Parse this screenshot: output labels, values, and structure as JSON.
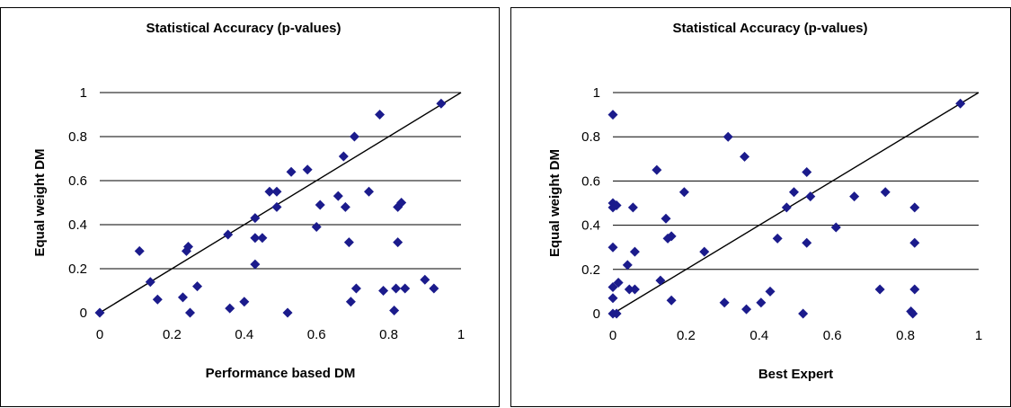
{
  "chart_data": [
    {
      "type": "scatter",
      "title": "Statistical Accuracy (p-values)",
      "xlabel": "Performance based DM",
      "ylabel": "Equal weight DM",
      "xlim": [
        0,
        1
      ],
      "ylim": [
        0,
        1
      ],
      "xticks": [
        "0",
        "0.2",
        "0.4",
        "0.6",
        "0.8",
        "1"
      ],
      "yticks": [
        "0",
        "0.2",
        "0.4",
        "0.6",
        "0.8",
        "1"
      ],
      "grid": "horizontal",
      "reference_line": "y = x",
      "marker_color": "#1b1b8c",
      "points": [
        [
          0,
          0
        ],
        [
          0.11,
          0.28
        ],
        [
          0.14,
          0.14
        ],
        [
          0.16,
          0.06
        ],
        [
          0.23,
          0.07
        ],
        [
          0.24,
          0.28
        ],
        [
          0.245,
          0.3
        ],
        [
          0.25,
          0
        ],
        [
          0.27,
          0.12
        ],
        [
          0.355,
          0.355
        ],
        [
          0.36,
          0.02
        ],
        [
          0.4,
          0.05
        ],
        [
          0.43,
          0.43
        ],
        [
          0.43,
          0.34
        ],
        [
          0.43,
          0.22
        ],
        [
          0.45,
          0.34
        ],
        [
          0.47,
          0.55
        ],
        [
          0.49,
          0.55
        ],
        [
          0.49,
          0.48
        ],
        [
          0.52,
          0
        ],
        [
          0.53,
          0.64
        ],
        [
          0.575,
          0.65
        ],
        [
          0.6,
          0.39
        ],
        [
          0.61,
          0.49
        ],
        [
          0.66,
          0.53
        ],
        [
          0.675,
          0.71
        ],
        [
          0.68,
          0.48
        ],
        [
          0.69,
          0.32
        ],
        [
          0.695,
          0.05
        ],
        [
          0.705,
          0.8
        ],
        [
          0.71,
          0.11
        ],
        [
          0.745,
          0.55
        ],
        [
          0.775,
          0.9
        ],
        [
          0.785,
          0.1
        ],
        [
          0.815,
          0.01
        ],
        [
          0.82,
          0.11
        ],
        [
          0.825,
          0.48
        ],
        [
          0.825,
          0.32
        ],
        [
          0.835,
          0.5
        ],
        [
          0.845,
          0.11
        ],
        [
          0.9,
          0.15
        ],
        [
          0.925,
          0.11
        ],
        [
          0.945,
          0.95
        ]
      ]
    },
    {
      "type": "scatter",
      "title": "Statistical Accuracy (p-values)",
      "xlabel": "Best Expert",
      "ylabel": "Equal weight DM",
      "xlim": [
        0,
        1
      ],
      "ylim": [
        0,
        1
      ],
      "xticks": [
        "0",
        "0.2",
        "0.4",
        "0.6",
        "0.8",
        "1"
      ],
      "yticks": [
        "0",
        "0.2",
        "0.4",
        "0.6",
        "0.8",
        "1"
      ],
      "grid": "horizontal",
      "reference_line": "y = x",
      "marker_color": "#1b1b8c",
      "points": [
        [
          0,
          0.9
        ],
        [
          0,
          0.5
        ],
        [
          0,
          0.48
        ],
        [
          0,
          0.3
        ],
        [
          0,
          0.07
        ],
        [
          0,
          0.12
        ],
        [
          0,
          0
        ],
        [
          0.01,
          0.49
        ],
        [
          0.01,
          0
        ],
        [
          0.015,
          0.14
        ],
        [
          0.04,
          0.22
        ],
        [
          0.045,
          0.11
        ],
        [
          0.055,
          0.48
        ],
        [
          0.06,
          0.28
        ],
        [
          0.06,
          0.11
        ],
        [
          0.12,
          0.65
        ],
        [
          0.13,
          0.15
        ],
        [
          0.145,
          0.43
        ],
        [
          0.15,
          0.34
        ],
        [
          0.16,
          0.35
        ],
        [
          0.16,
          0.06
        ],
        [
          0.195,
          0.55
        ],
        [
          0.25,
          0.28
        ],
        [
          0.305,
          0.05
        ],
        [
          0.315,
          0.8
        ],
        [
          0.36,
          0.71
        ],
        [
          0.365,
          0.02
        ],
        [
          0.405,
          0.05
        ],
        [
          0.43,
          0.1
        ],
        [
          0.45,
          0.34
        ],
        [
          0.475,
          0.48
        ],
        [
          0.495,
          0.55
        ],
        [
          0.52,
          0
        ],
        [
          0.53,
          0.64
        ],
        [
          0.53,
          0.32
        ],
        [
          0.54,
          0.53
        ],
        [
          0.61,
          0.39
        ],
        [
          0.66,
          0.53
        ],
        [
          0.73,
          0.11
        ],
        [
          0.745,
          0.55
        ],
        [
          0.815,
          0.01
        ],
        [
          0.82,
          0
        ],
        [
          0.825,
          0.48
        ],
        [
          0.825,
          0.32
        ],
        [
          0.825,
          0.11
        ],
        [
          0.95,
          0.95
        ]
      ]
    }
  ]
}
